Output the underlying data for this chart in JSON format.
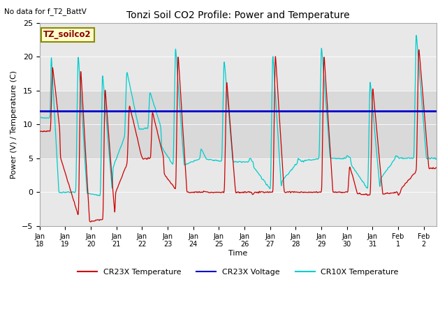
{
  "title": "Tonzi Soil CO2 Profile: Power and Temperature",
  "no_data_text": "No data for f_T2_BattV",
  "ylabel": "Power (V) / Temperature (C)",
  "xlabel": "Time",
  "ylim": [
    -5,
    25
  ],
  "yticks": [
    -5,
    0,
    5,
    10,
    15,
    20,
    25
  ],
  "voltage_level": 12.0,
  "voltage_color": "#0000cc",
  "cr23x_color": "#cc0000",
  "cr10x_color": "#00cccc",
  "legend_entries": [
    "CR23X Temperature",
    "CR23X Voltage",
    "CR10X Temperature"
  ],
  "legend_colors": [
    "#cc0000",
    "#0000cc",
    "#00cccc"
  ],
  "annotation_text": "TZ_soilco2",
  "background_color": "#e8e8e8",
  "plot_bg_color": "#d8d8d8",
  "band_color": "#c8c8c8",
  "x_tick_labels": [
    "Jan 18",
    "Jan 19",
    "Jan 20",
    "Jan 21",
    "Jan 22",
    "Jan 23",
    "Jan 24",
    "Jan 25",
    "Jan 26",
    "Jan 27",
    "Jan 28",
    "Jan 29",
    "Jan 30",
    "Jan 31",
    "Feb 1",
    "Feb 2"
  ],
  "figsize": [
    6.4,
    4.8
  ],
  "dpi": 100
}
